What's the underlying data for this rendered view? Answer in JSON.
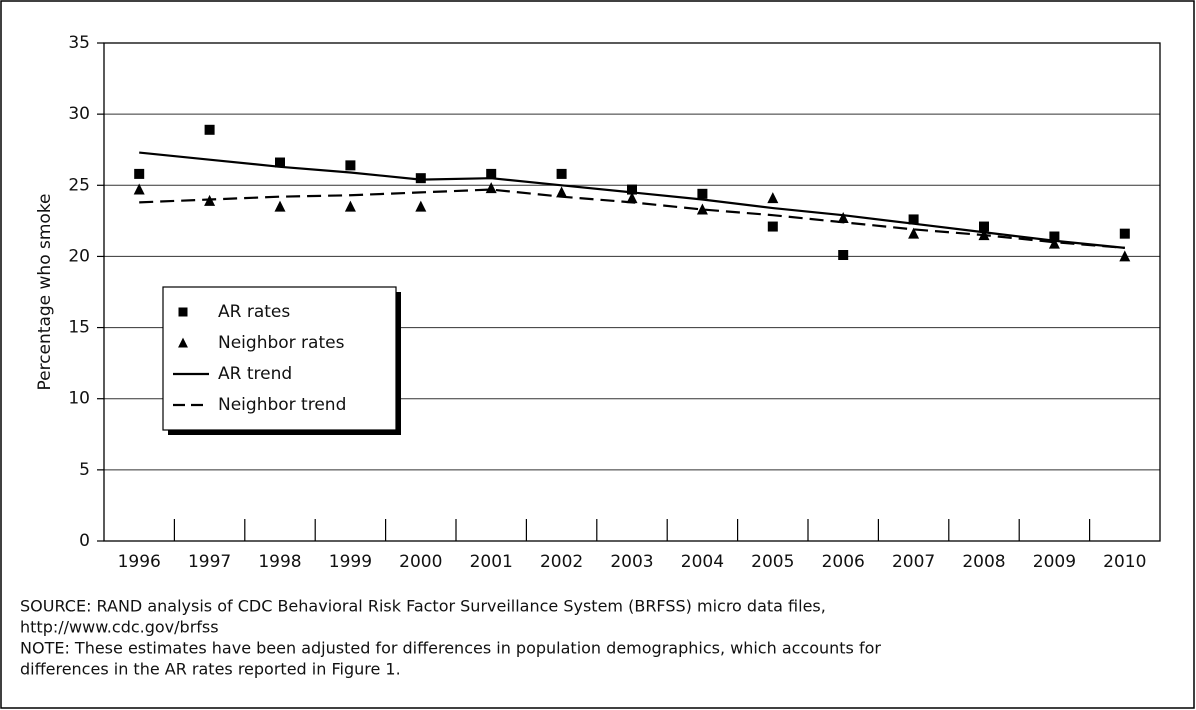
{
  "chart_data": {
    "type": "line",
    "ylabel": "Percentage who smoke",
    "categories": [
      "1996",
      "1997",
      "1998",
      "1999",
      "2000",
      "2001",
      "2002",
      "2003",
      "2004",
      "2005",
      "2006",
      "2007",
      "2008",
      "2009",
      "2010"
    ],
    "series": [
      {
        "name": "AR rates",
        "color": "#000000",
        "marker": "square",
        "line": false,
        "values": [
          25.8,
          28.9,
          26.6,
          26.4,
          25.5,
          25.8,
          25.8,
          24.7,
          24.4,
          22.1,
          20.1,
          22.6,
          22.1,
          21.4,
          21.6
        ]
      },
      {
        "name": "Neighbor rates",
        "color": "#000000",
        "marker": "triangle",
        "line": false,
        "values": [
          24.7,
          23.9,
          23.5,
          23.5,
          23.5,
          24.8,
          24.5,
          24.1,
          23.3,
          24.1,
          22.7,
          21.6,
          21.5,
          20.9,
          20.0
        ]
      },
      {
        "name": "AR trend",
        "color": "#000000",
        "marker": "none",
        "line": "solid",
        "values": [
          27.3,
          26.8,
          26.3,
          25.9,
          25.4,
          25.5,
          25.0,
          24.5,
          24.0,
          23.4,
          22.9,
          22.3,
          21.7,
          21.1,
          20.6
        ]
      },
      {
        "name": "Neighbor trend",
        "color": "#000000",
        "marker": "none",
        "line": "dashed",
        "values": [
          23.8,
          24.0,
          24.2,
          24.3,
          24.5,
          24.7,
          24.2,
          23.8,
          23.3,
          22.9,
          22.4,
          21.9,
          21.5,
          21.0,
          20.6
        ]
      }
    ],
    "ylim": [
      0,
      35
    ],
    "yticks": [
      0,
      5,
      10,
      15,
      20,
      25,
      30,
      35
    ],
    "grid": true,
    "legend": "left",
    "notes": [
      "SOURCE: RAND analysis of CDC Behavioral Risk Factor Surveillance System (BRFSS) micro data files,",
      "http://www.cdc.gov/brfss",
      "NOTE: These estimates have been adjusted for differences in population demographics, which accounts for",
      "differences in the AR rates reported in Figure 1."
    ]
  }
}
